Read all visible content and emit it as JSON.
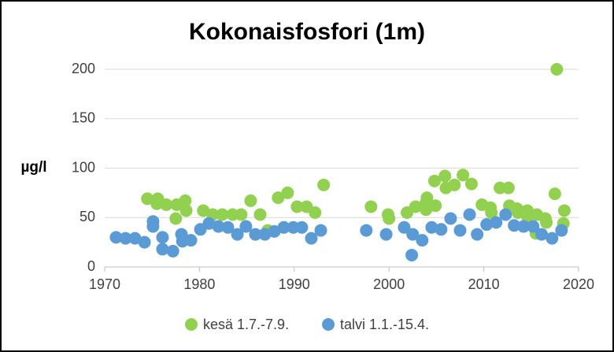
{
  "chart_data": {
    "type": "scatter",
    "title": "Kokonaisfosfori (1m)",
    "y_label": "µg/l",
    "xlim": [
      1970,
      2020
    ],
    "xticks": [
      1970,
      1980,
      1990,
      2000,
      2010,
      2020
    ],
    "ylim": [
      0,
      200
    ],
    "yticks": [
      0,
      50,
      100,
      150,
      200
    ],
    "grid": true,
    "legend": "bottom",
    "series": [
      {
        "name": "kesä 1.7.-7.9.",
        "color": "#92d050",
        "x": [
          1974.5,
          1975.6,
          1975.5,
          1976.5,
          1977.6,
          1977.5,
          1978.5,
          1978.6,
          1980.4,
          1981.4,
          1982.4,
          1983.5,
          1984.4,
          1985.4,
          1986.4,
          1987.2,
          1988.3,
          1989.3,
          1990.3,
          1991.3,
          1992.2,
          1993.1,
          1998.1,
          1999.9,
          2000.0,
          2001.9,
          2002.8,
          2003.9,
          2003.9,
          2004.0,
          2004.8,
          2004.9,
          2005.9,
          2006.0,
          2006.9,
          2007.8,
          2008.7,
          2009.8,
          2010.7,
          2010.8,
          2011.7,
          2012.6,
          2012.7,
          2013.5,
          2013.6,
          2014.6,
          2014.6,
          2015.6,
          2015.5,
          2016.5,
          2016.6,
          2017.5,
          2017.7,
          2018.5,
          2018.4
        ],
        "values": [
          69,
          69,
          64,
          63,
          63,
          49,
          67,
          57,
          57,
          53,
          53,
          53,
          53,
          67,
          53,
          37,
          70,
          75,
          61,
          61,
          55,
          83,
          61,
          53,
          49,
          55,
          61,
          65,
          58,
          70,
          87,
          62,
          92,
          80,
          83,
          93,
          84,
          63,
          60,
          55,
          80,
          80,
          62,
          59,
          55,
          57,
          51,
          53,
          34,
          49,
          45,
          74,
          200,
          57,
          44
        ]
      },
      {
        "name": "talvi 1.1.-15.4.",
        "color": "#5b9bd5",
        "x": [
          1971.2,
          1972.2,
          1973.2,
          1974.2,
          1975.1,
          1975.1,
          1976.1,
          1976.1,
          1977.2,
          1978.1,
          1978.2,
          1979.1,
          1980.1,
          1981.0,
          1982.0,
          1983.0,
          1984.0,
          1984.9,
          1985.9,
          1986.9,
          1987.9,
          1988.9,
          1989.9,
          1990.8,
          1991.8,
          1992.8,
          1997.6,
          1999.7,
          2001.6,
          2002.5,
          2002.4,
          2003.5,
          2004.5,
          2005.5,
          2006.5,
          2007.5,
          2008.5,
          2009.3,
          2010.3,
          2011.3,
          2012.3,
          2013.2,
          2014.2,
          2015.2,
          2016.1,
          2017.2,
          2018.2
        ],
        "values": [
          30,
          29,
          29,
          25,
          46,
          41,
          30,
          18,
          16,
          33,
          26,
          27,
          38,
          44,
          41,
          40,
          33,
          41,
          33,
          33,
          36,
          40,
          40,
          40,
          29,
          37,
          37,
          33,
          40,
          33,
          12,
          27,
          40,
          38,
          49,
          37,
          53,
          33,
          43,
          45,
          53,
          42,
          41,
          41,
          33,
          29,
          37
        ]
      }
    ]
  }
}
